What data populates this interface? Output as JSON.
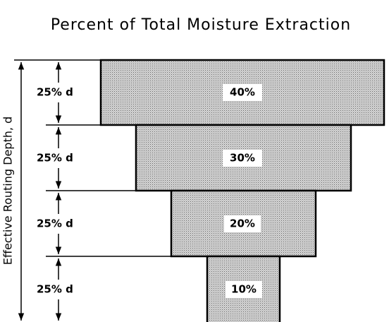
{
  "title": "Percent of Total Moisture Extraction",
  "axis_label": "Effective Routing Depth, d",
  "layers": [
    {
      "depth": "25% d",
      "extraction": "40%"
    },
    {
      "depth": "25% d",
      "extraction": "30%"
    },
    {
      "depth": "25% d",
      "extraction": "20%"
    },
    {
      "depth": "25% d",
      "extraction": "10%"
    }
  ]
}
